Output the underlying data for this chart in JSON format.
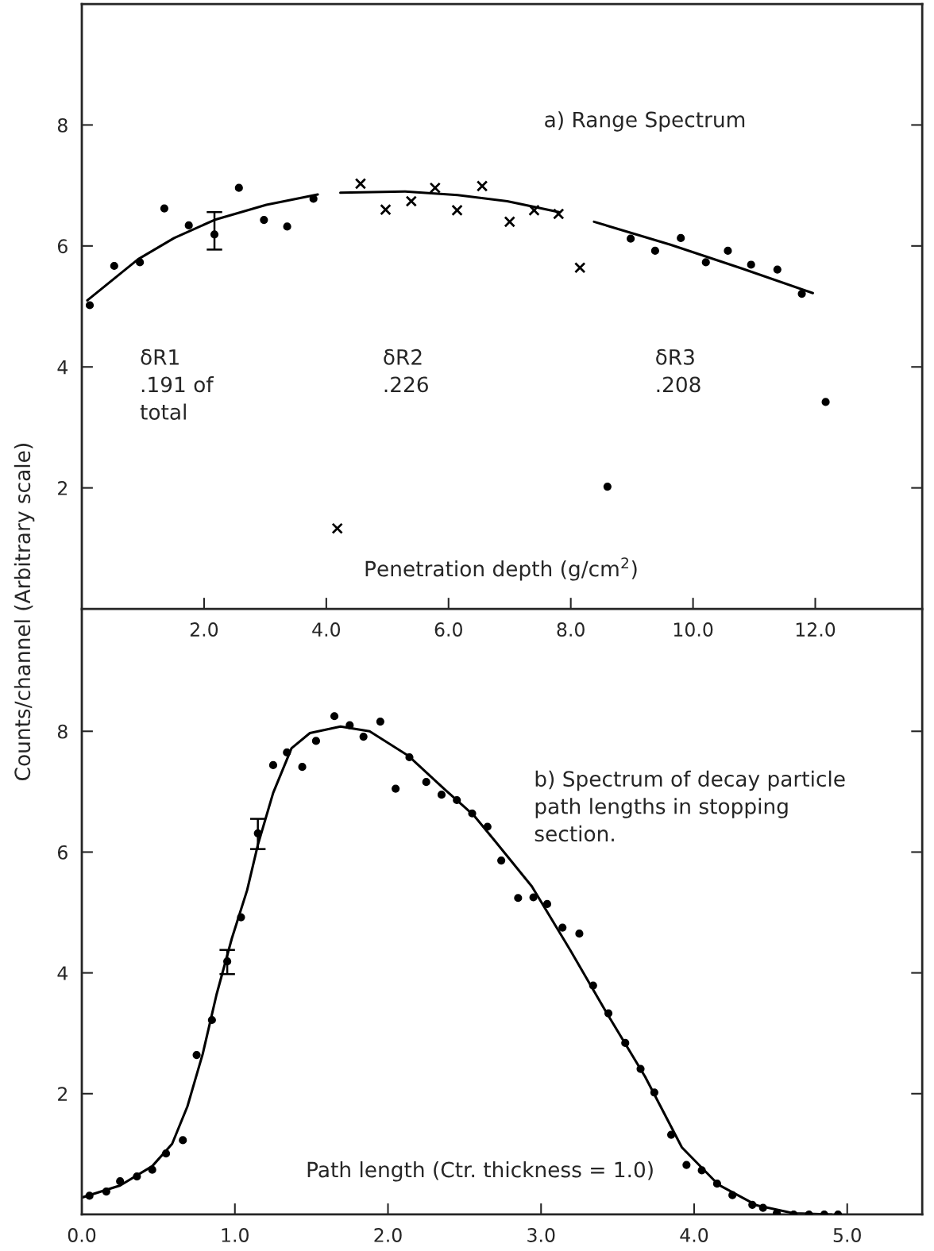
{
  "chart_data": [
    {
      "type": "scatter",
      "title": "a) Range Spectrum",
      "xlabel": "Penetration depth (g/cm$^{2}$)",
      "ylabel": "Counts/channel (Arbitrary scale)",
      "annotations": [
        "δR1\n.191 of\ntotal",
        "δR2\n.226",
        "δR3\n.208"
      ],
      "xlim": [
        0,
        13.75
      ],
      "ylim": [
        0,
        10
      ],
      "xticks": [
        {
          "value": 2,
          "label": "2.0"
        },
        {
          "value": 4,
          "label": "4.0"
        },
        {
          "value": 6,
          "label": "6.0"
        },
        {
          "value": 8,
          "label": "8.0"
        },
        {
          "value": 10,
          "label": "10.0"
        },
        {
          "value": 12,
          "label": "12.0"
        }
      ],
      "yticks": [
        2,
        4,
        6,
        8
      ],
      "series": [
        {
          "marker": "circle",
          "color": "#000000",
          "x": [
            0.13,
            0.53,
            0.95,
            1.35,
            1.75,
            2.17,
            2.57,
            2.98,
            3.36,
            3.79
          ],
          "values": [
            5.02,
            5.67,
            5.73,
            6.62,
            6.34,
            6.19,
            6.96,
            6.43,
            6.32,
            6.78
          ],
          "errors": [
            null,
            null,
            null,
            null,
            null,
            [
              5.94,
              6.56
            ],
            null,
            null,
            null,
            null
          ]
        },
        {
          "marker": "cross",
          "color": "#000000",
          "x": [
            4.18,
            4.56,
            4.97,
            5.39,
            5.78,
            6.14,
            6.55,
            7.0,
            7.4,
            7.8,
            8.15
          ],
          "values": [
            1.33,
            7.03,
            6.6,
            6.74,
            6.96,
            6.59,
            6.99,
            6.4,
            6.59,
            6.53,
            5.64
          ]
        },
        {
          "marker": "circle",
          "color": "#000000",
          "x": [
            8.6,
            8.98,
            9.38,
            9.8,
            10.21,
            10.57,
            10.95,
            11.38,
            11.78,
            12.17
          ],
          "values": [
            2.02,
            6.12,
            5.92,
            6.13,
            5.73,
            5.92,
            5.69,
            5.61,
            5.21,
            3.42
          ]
        },
        {
          "type": "line",
          "line_style": "solid",
          "color": "#000000",
          "x": [
            0.09,
            0.92,
            1.51,
            2.17,
            3.02,
            3.86
          ],
          "values": [
            5.1,
            5.78,
            6.13,
            6.43,
            6.68,
            6.85
          ]
        },
        {
          "type": "line",
          "line_style": "solid",
          "color": "#000000",
          "x": [
            4.23,
            5.29,
            6.15,
            6.96,
            7.81
          ],
          "values": [
            6.88,
            6.9,
            6.84,
            6.74,
            6.56
          ]
        },
        {
          "type": "line",
          "line_style": "solid",
          "color": "#000000",
          "x": [
            8.38,
            9.63,
            10.79,
            11.96
          ],
          "values": [
            6.4,
            6.02,
            5.63,
            5.22
          ]
        }
      ]
    },
    {
      "type": "scatter",
      "title": "b) Spectrum of decay particle\npath lengths in stopping\nsection.",
      "xlabel": "Path length (Ctr. thickness = 1.0)",
      "xlim": [
        0,
        5.49
      ],
      "ylim": [
        0,
        10
      ],
      "xticks": [
        {
          "value": 0,
          "label": "0.0"
        },
        {
          "value": 1,
          "label": "1.0"
        },
        {
          "value": 2,
          "label": "2.0"
        },
        {
          "value": 3,
          "label": "3.0"
        },
        {
          "value": 4,
          "label": "4.0"
        },
        {
          "value": 5,
          "label": "5.0"
        }
      ],
      "yticks": [
        2,
        4,
        6,
        8
      ],
      "series": [
        {
          "marker": "circle",
          "color": "#000000",
          "x": [
            0.05,
            0.16,
            0.25,
            0.36,
            0.46,
            0.55,
            0.66,
            0.75,
            0.85,
            0.95,
            1.04,
            1.15,
            1.25,
            1.34,
            1.44,
            1.53,
            1.65,
            1.75,
            1.84,
            1.95,
            2.05,
            2.14,
            2.25,
            2.35,
            2.45,
            2.55,
            2.65,
            2.74,
            2.85,
            2.95,
            3.04,
            3.14,
            3.25,
            3.34,
            3.44,
            3.55,
            3.65,
            3.74,
            3.85,
            3.95,
            4.05,
            4.15,
            4.25,
            4.38,
            4.45,
            4.54,
            4.65,
            4.75,
            4.85,
            4.94
          ],
          "values": [
            0.31,
            0.38,
            0.55,
            0.63,
            0.74,
            1.01,
            1.23,
            2.64,
            3.22,
            4.19,
            4.92,
            6.31,
            7.44,
            7.65,
            7.41,
            7.84,
            8.25,
            8.1,
            7.91,
            8.16,
            7.05,
            7.57,
            7.16,
            6.95,
            6.86,
            6.64,
            6.42,
            5.86,
            5.24,
            5.25,
            5.14,
            4.75,
            4.65,
            3.79,
            3.33,
            2.84,
            2.41,
            2.02,
            1.32,
            0.82,
            0.73,
            0.51,
            0.32,
            0.16,
            0.11,
            0.02,
            0.0,
            0.0,
            0.0,
            0.0
          ],
          "errors": [
            null,
            null,
            null,
            null,
            null,
            null,
            null,
            null,
            null,
            [
              3.98,
              4.38
            ],
            null,
            [
              6.05,
              6.55
            ],
            null,
            null,
            null,
            null,
            null,
            null,
            null,
            null,
            null,
            null,
            null,
            null,
            null,
            null,
            null,
            null,
            null,
            null,
            null,
            null,
            null,
            null,
            null,
            null,
            null,
            null,
            null,
            null,
            null,
            null,
            null,
            null,
            null,
            null,
            null,
            null,
            null,
            null
          ]
        },
        {
          "type": "line",
          "line_style": "solid",
          "color": "#000000",
          "x": [
            0.0,
            0.25,
            0.46,
            0.59,
            0.69,
            0.79,
            0.88,
            0.98,
            1.08,
            1.15,
            1.25,
            1.37,
            1.49,
            1.69,
            1.88,
            2.13,
            2.37,
            2.56,
            2.7,
            2.94,
            3.19,
            3.43,
            3.68,
            3.92,
            4.16,
            4.41,
            4.65,
            4.9
          ],
          "values": [
            0.28,
            0.48,
            0.8,
            1.17,
            1.79,
            2.66,
            3.64,
            4.57,
            5.37,
            6.12,
            6.98,
            7.72,
            7.97,
            8.08,
            8.0,
            7.6,
            7.04,
            6.61,
            6.18,
            5.43,
            4.38,
            3.33,
            2.28,
            1.11,
            0.49,
            0.15,
            0.02,
            0.0
          ]
        }
      ]
    }
  ]
}
